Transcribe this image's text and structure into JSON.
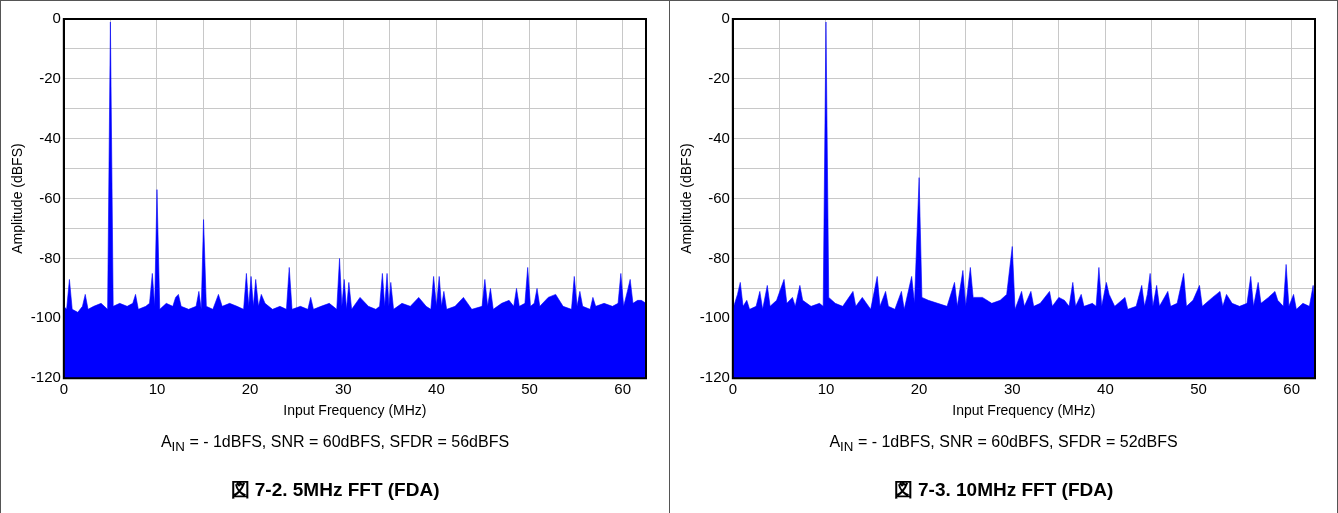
{
  "chart_data": [
    {
      "type": "area",
      "title": "図 7-2. 5MHz FFT (FDA)",
      "xlabel": "Input Frequency (MHz)",
      "ylabel": "Amplitude (dBFS)",
      "annotations": [
        "A$_{IN}$ = - 1dBFS, SNR = 60dBFS, SFDR = 56dBFS"
      ],
      "xlim": [
        0,
        62.5
      ],
      "xticks": [
        0,
        {
          "value": 5,
          "label": null
        },
        10,
        {
          "value": 15,
          "label": null
        },
        20,
        {
          "value": 25,
          "label": null
        },
        30,
        {
          "value": 35,
          "label": null
        },
        40,
        {
          "value": 45,
          "label": null
        },
        50,
        {
          "value": 55,
          "label": null
        },
        60
      ],
      "ylim": [
        -120,
        0
      ],
      "yticks": [
        -120,
        -100,
        {
          "value": -90,
          "label": null
        },
        -80,
        {
          "value": -70,
          "label": null
        },
        -60,
        {
          "value": -50,
          "label": null
        },
        -40,
        {
          "value": -30,
          "label": null
        },
        -20,
        {
          "value": -10,
          "label": null
        },
        0
      ],
      "grid": true,
      "series": [
        {
          "color": "#0000ff",
          "x": [
            0,
            0,
            0.3,
            0.6,
            0.9,
            1.5,
            2.0,
            2.3,
            2.6,
            3.2,
            4.0,
            4.7,
            5,
            5.3,
            6.0,
            6.8,
            7.4,
            7.7,
            8.0,
            8.8,
            9.2,
            9.5,
            9.75,
            10,
            10.3,
            11.0,
            11.7,
            12.0,
            12.3,
            12.6,
            13.4,
            14.2,
            14.5,
            14.75,
            15,
            15.3,
            16.0,
            16.6,
            17.0,
            17.8,
            18.6,
            19.3,
            19.6,
            19.85,
            20.1,
            20.35,
            20.6,
            20.9,
            21.2,
            21.6,
            22.4,
            23.2,
            23.9,
            24.2,
            24.5,
            25.4,
            26.2,
            26.5,
            26.8,
            27.6,
            28.5,
            29.3,
            29.6,
            29.85,
            30.1,
            30.35,
            30.6,
            30.9,
            31.8,
            32.7,
            33.5,
            33.9,
            34.2,
            34.45,
            34.7,
            34.9,
            35.1,
            35.4,
            36.3,
            37.2,
            38.1,
            38.9,
            39.4,
            39.7,
            40.0,
            40.3,
            40.55,
            40.8,
            41.1,
            42.0,
            42.9,
            43.8,
            44.9,
            45.2,
            45.5,
            45.8,
            46.1,
            47.0,
            47.8,
            48.3,
            48.6,
            48.9,
            49.5,
            49.8,
            50.1,
            50.5,
            50.8,
            51.1,
            52.0,
            52.8,
            53.6,
            54.5,
            54.8,
            55.1,
            55.4,
            55.7,
            56.5,
            56.8,
            57.1,
            58.0,
            58.9,
            59.5,
            59.8,
            60.1,
            60.5,
            60.8,
            61.1,
            61.6,
            62.0,
            62.5,
            62.5
          ],
          "values": [
            -120,
            -96,
            -97,
            -87,
            -97,
            -98,
            -96,
            -92,
            -97,
            -96,
            -95,
            -97,
            -1,
            -96,
            -95,
            -96,
            -95,
            -92,
            -97,
            -96,
            -95,
            -85,
            -96,
            -57,
            -97,
            -95,
            -96,
            -93,
            -92,
            -96,
            -97,
            -96,
            -91,
            -97,
            -67,
            -96,
            -97,
            -92,
            -96,
            -95,
            -96,
            -97,
            -85,
            -96,
            -86,
            -96,
            -87,
            -96,
            -92,
            -95,
            -97,
            -96,
            -97,
            -83,
            -97,
            -96,
            -97,
            -93,
            -97,
            -96,
            -95,
            -97,
            -80,
            -96,
            -87,
            -97,
            -88,
            -97,
            -93,
            -96,
            -97,
            -96,
            -85,
            -96,
            -85,
            -96,
            -88,
            -97,
            -95,
            -96,
            -93,
            -96,
            -97,
            -86,
            -96,
            -86,
            -96,
            -91,
            -97,
            -96,
            -93,
            -97,
            -96,
            -87,
            -96,
            -90,
            -97,
            -95,
            -94,
            -96,
            -90,
            -96,
            -95,
            -83,
            -96,
            -95,
            -90,
            -96,
            -93,
            -92,
            -96,
            -97,
            -86,
            -96,
            -91,
            -96,
            -97,
            -93,
            -96,
            -95,
            -96,
            -95,
            -85,
            -96,
            -91,
            -87,
            -95,
            -94,
            -94,
            -95,
            -120
          ]
        }
      ]
    },
    {
      "type": "area",
      "title": "図 7-3. 10MHz FFT (FDA)",
      "xlabel": "Input Frequency (MHz)",
      "ylabel": "Amplitude (dBFS)",
      "annotations": [
        "A$_{IN}$ = - 1dBFS, SNR = 60dBFS, SFDR = 52dBFS"
      ],
      "xlim": [
        0,
        62.5
      ],
      "xticks": [
        0,
        {
          "value": 5,
          "label": null
        },
        10,
        {
          "value": 15,
          "label": null
        },
        20,
        {
          "value": 25,
          "label": null
        },
        30,
        {
          "value": 35,
          "label": null
        },
        40,
        {
          "value": 45,
          "label": null
        },
        50,
        {
          "value": 55,
          "label": null
        },
        60
      ],
      "ylim": [
        -120,
        0
      ],
      "yticks": [
        -120,
        -100,
        {
          "value": -90,
          "label": null
        },
        -80,
        {
          "value": -70,
          "label": null
        },
        -60,
        {
          "value": -50,
          "label": null
        },
        -40,
        {
          "value": -30,
          "label": null
        },
        -20,
        {
          "value": -10,
          "label": null
        },
        0
      ],
      "grid": true,
      "series": [
        {
          "color": "#0000ff",
          "x": [
            0,
            0,
            0.5,
            0.8,
            1.1,
            1.5,
            1.8,
            2.5,
            2.9,
            3.2,
            3.7,
            4.0,
            4.7,
            5.5,
            5.8,
            6.4,
            6.7,
            7.2,
            7.5,
            8.4,
            9.3,
            9.7,
            10,
            10.3,
            11.0,
            11.8,
            12.9,
            13.2,
            13.9,
            14.8,
            15.5,
            15.8,
            16.4,
            16.7,
            17.4,
            18.1,
            18.4,
            19.2,
            19.5,
            20,
            20.3,
            21.0,
            22.0,
            23.0,
            23.8,
            24.1,
            24.7,
            25.0,
            25.5,
            25.8,
            26.8,
            27.8,
            28.7,
            29.4,
            30,
            30.3,
            31.0,
            31.3,
            32.0,
            32.3,
            33.0,
            34.0,
            34.3,
            35.0,
            35.6,
            36.1,
            36.5,
            36.8,
            37.4,
            37.7,
            38.6,
            39.0,
            39.3,
            39.6,
            40.1,
            40.4,
            41.0,
            42.1,
            42.4,
            43.3,
            43.9,
            44.2,
            44.5,
            44.8,
            45.1,
            45.5,
            45.8,
            46.7,
            47.0,
            47.7,
            48.4,
            48.7,
            49.4,
            50.1,
            50.4,
            51.5,
            52.3,
            52.6,
            53.0,
            53.6,
            54.4,
            55.2,
            55.6,
            55.9,
            56.4,
            56.7,
            57.5,
            58.2,
            58.5,
            59.1,
            59.4,
            59.7,
            60.2,
            60.5,
            61.2,
            61.9,
            62.3,
            62.5,
            62.5
          ],
          "values": [
            -120,
            -97,
            -92,
            -88,
            -96,
            -94,
            -97,
            -96,
            -91,
            -97,
            -89,
            -96,
            -94,
            -87,
            -95,
            -93,
            -96,
            -89,
            -94,
            -96,
            -95,
            -96,
            -1,
            -93,
            -95,
            -96,
            -91,
            -96,
            -93,
            -97,
            -86,
            -96,
            -91,
            -96,
            -97,
            -91,
            -97,
            -86,
            -95,
            -53,
            -93,
            -94,
            -95,
            -96,
            -88,
            -96,
            -84,
            -96,
            -83,
            -93,
            -93,
            -95,
            -94,
            -92,
            -76,
            -97,
            -91,
            -96,
            -91,
            -96,
            -95,
            -91,
            -96,
            -93,
            -94,
            -96,
            -88,
            -96,
            -92,
            -96,
            -95,
            -96,
            -83,
            -96,
            -88,
            -92,
            -96,
            -93,
            -97,
            -96,
            -89,
            -96,
            -92,
            -85,
            -96,
            -89,
            -96,
            -91,
            -96,
            -95,
            -85,
            -96,
            -94,
            -89,
            -96,
            -93,
            -91,
            -96,
            -92,
            -95,
            -96,
            -95,
            -86,
            -96,
            -88,
            -95,
            -93,
            -91,
            -94,
            -96,
            -82,
            -96,
            -92,
            -97,
            -95,
            -96,
            -89,
            -96,
            -120
          ]
        }
      ]
    }
  ]
}
